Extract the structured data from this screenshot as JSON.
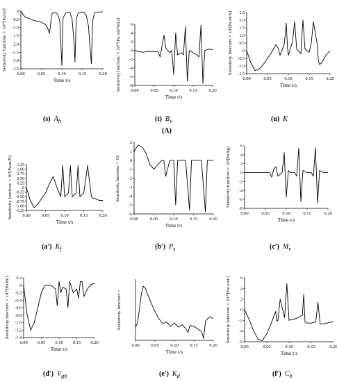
{
  "figure": {
    "group_label": "(A)",
    "panels": [
      {
        "id": "s",
        "letter": "(s)",
        "name": "A",
        "sub": "h",
        "ylabel": "Sensitivity function/ × 10¹⁰[Pa/m²]",
        "xlabel": "Time t/s",
        "yticks": [
          "0",
          "-0.5",
          "-1.0",
          "-1.5",
          "-2.0",
          "-2.5",
          "-3.0",
          "-3.5"
        ]
      },
      {
        "id": "t",
        "letter": "(t)",
        "name": "B",
        "sub": "v",
        "ylabel": "Sensitivity function/ × 10¹⁰[Pa.rad/Nm.s]",
        "xlabel": "Time t/s",
        "yticks": [
          "6",
          "4",
          "2",
          "0",
          "-2",
          "-4",
          "-6",
          "-8"
        ]
      },
      {
        "id": "u",
        "letter": "(u)",
        "name": "K",
        "sub": "",
        "ylabel": "Sensitivity function/ × 10¹[Pa.m/N]",
        "xlabel": "Time t/s",
        "yticks": [
          "2.5",
          "2.0",
          "1.5",
          "1.0",
          "0.5",
          "0",
          "-0.5",
          "-1.0",
          "-1.5"
        ]
      },
      {
        "id": "a",
        "letter": "(a′)",
        "name": "K",
        "sub": "f",
        "ylabel": "Sensitivity function/ × 10³[Pa.m/N]",
        "xlabel": "Time t/s",
        "yticks": [
          "1.25",
          "1.00",
          "0.75",
          "0.50",
          "0.25",
          "0",
          "-0.25",
          "-0.50",
          "-0.75",
          "-1.00",
          "-1.25"
        ]
      },
      {
        "id": "b",
        "letter": "(b′)",
        "name": "P",
        "sub": "s",
        "ylabel": "Sensitivity function/ × 10·",
        "xlabel": "Time t/s",
        "yticks": [
          "2",
          "1",
          "0",
          "-1",
          "-2",
          "-3",
          "-4",
          "-5",
          "-6"
        ]
      },
      {
        "id": "c",
        "letter": "(c′)",
        "name": "M",
        "sub": "v",
        "ylabel": "Sensitivity function/ × 10⁸[Pa/kg]",
        "xlabel": "Time t/s",
        "yticks": [
          "6",
          "4",
          "2",
          "0",
          "-2",
          "-4",
          "-6",
          "-8"
        ]
      },
      {
        "id": "d",
        "letter": "(d′)",
        "name": "V",
        "sub": "gb",
        "ylabel": "Sensitivity function/ × 10¹⁰[Pa/m³]",
        "xlabel": "Time t/s",
        "yticks": [
          "0.2",
          "0",
          "-0.2",
          "-0.4",
          "-0.6",
          "-0.8",
          "-1.0",
          "-1.2",
          "-1.4"
        ]
      },
      {
        "id": "e",
        "letter": "(e′)",
        "name": "K",
        "sub": "d",
        "ylabel": "Sensitivity function/ ×",
        "xlabel": "Time t/s",
        "yticks": []
      },
      {
        "id": "f",
        "letter": "(f′)",
        "name": "C",
        "sub": "b",
        "ylabel": "Sensitivity function/ × 10¹⁰[Pa².s/m³]",
        "xlabel": "Time t/s",
        "yticks": [
          "6",
          "4",
          "2",
          "0",
          "-2",
          "-4",
          "-6"
        ]
      }
    ]
  },
  "chart_data": [
    {
      "type": "line",
      "panel": "(s) Ah",
      "xlabel": "Time t/s",
      "ylabel": "Sensitivity function/ × 10¹⁰[Pa/m²]",
      "xlim": [
        0,
        0.2
      ],
      "ylim": [
        -3.5,
        0
      ],
      "x": [
        0,
        0.005,
        0.01,
        0.02,
        0.03,
        0.04,
        0.05,
        0.06,
        0.065,
        0.07,
        0.072,
        0.075,
        0.08,
        0.085,
        0.09,
        0.095,
        0.098,
        0.1,
        0.103,
        0.11,
        0.115,
        0.12,
        0.125,
        0.13,
        0.132,
        0.135,
        0.14,
        0.15,
        0.155,
        0.16,
        0.165,
        0.17,
        0.172,
        0.175,
        0.18,
        0.19,
        0.2
      ],
      "y": [
        0,
        -0.2,
        -0.35,
        -0.45,
        -0.55,
        -0.62,
        -0.68,
        -0.8,
        -1.0,
        -1.35,
        -0.9,
        -0.2,
        -0.1,
        -0.1,
        -0.2,
        -0.6,
        -2.2,
        -3.3,
        -0.4,
        -0.1,
        -0.05,
        -0.1,
        -0.5,
        -2.0,
        -3.1,
        -0.5,
        -0.1,
        -0.05,
        -0.1,
        -0.3,
        -0.9,
        -2.6,
        -3.2,
        -0.6,
        -0.1,
        -0.05,
        -0.05
      ]
    },
    {
      "type": "line",
      "panel": "(t) Bv",
      "xlabel": "Time t/s",
      "ylabel": "Sensitivity function/ × 10¹⁰[Pa.rad/Nm.s]",
      "xlim": [
        0,
        0.2
      ],
      "ylim": [
        -8,
        6
      ],
      "x": [
        0,
        0.01,
        0.02,
        0.03,
        0.04,
        0.05,
        0.06,
        0.065,
        0.07,
        0.075,
        0.08,
        0.09,
        0.095,
        0.1,
        0.105,
        0.11,
        0.12,
        0.125,
        0.13,
        0.135,
        0.14,
        0.15,
        0.16,
        0.165,
        0.17,
        0.175,
        0.18,
        0.19,
        0.2
      ],
      "y": [
        0,
        -0.2,
        -0.4,
        -0.3,
        -0.2,
        -0.2,
        -0.3,
        -1.5,
        1.0,
        3.5,
        0.5,
        -0.5,
        0,
        -5.5,
        4.0,
        -1.0,
        -0.5,
        -1.0,
        5.5,
        -7.0,
        0,
        -0.5,
        -1.0,
        -1.5,
        5.8,
        -7.5,
        0,
        0.3,
        0.2
      ]
    },
    {
      "type": "line",
      "panel": "(u) K",
      "xlabel": "Time t/s",
      "ylabel": "Sensitivity function/ × 10¹[Pa.m/N]",
      "xlim": [
        0,
        0.2
      ],
      "ylim": [
        -1.5,
        2.5
      ],
      "x": [
        0,
        0.01,
        0.02,
        0.03,
        0.04,
        0.05,
        0.06,
        0.07,
        0.075,
        0.08,
        0.09,
        0.095,
        0.098,
        0.1,
        0.11,
        0.115,
        0.12,
        0.13,
        0.132,
        0.135,
        0.14,
        0.15,
        0.155,
        0.16,
        0.17,
        0.172,
        0.175,
        0.18,
        0.19,
        0.2
      ],
      "y": [
        0,
        -0.8,
        -1.3,
        -1.2,
        -0.9,
        -0.5,
        -0.1,
        0.4,
        0.2,
        -0.3,
        0.4,
        1.8,
        0.2,
        -0.3,
        0.6,
        1.9,
        0.1,
        -0.2,
        0.8,
        2.0,
        0.1,
        -0.1,
        0.5,
        1.9,
        0.3,
        -0.7,
        -0.9,
        -0.8,
        -0.3,
        0
      ]
    },
    {
      "type": "line",
      "panel": "(a′) Kf",
      "xlabel": "Time t/s",
      "ylabel": "Sensitivity function/ × 10³[Pa.m/N]",
      "xlim": [
        0,
        0.2
      ],
      "ylim": [
        -1.25,
        1.25
      ],
      "x": [
        0,
        0.01,
        0.02,
        0.03,
        0.04,
        0.05,
        0.06,
        0.07,
        0.075,
        0.08,
        0.09,
        0.095,
        0.1,
        0.11,
        0.115,
        0.12,
        0.13,
        0.132,
        0.135,
        0.14,
        0.15,
        0.155,
        0.16,
        0.17,
        0.175,
        0.18,
        0.19,
        0.2
      ],
      "y": [
        0,
        -0.7,
        -1.1,
        -0.9,
        -0.6,
        -0.3,
        0.2,
        0.6,
        0.3,
        0.0,
        -0.5,
        1.2,
        -0.5,
        -0.3,
        1.2,
        -0.5,
        -0.3,
        0.2,
        1.2,
        -0.5,
        -0.3,
        0.4,
        1.2,
        -0.5,
        -0.6,
        -0.6,
        -0.7,
        -0.7
      ]
    },
    {
      "type": "line",
      "panel": "(b′) Ps",
      "xlabel": "Time t/s",
      "ylabel": "Sensitivity function/ × 10·",
      "xlim": [
        0,
        0.2
      ],
      "ylim": [
        -6,
        2
      ],
      "x": [
        0,
        0.01,
        0.02,
        0.03,
        0.04,
        0.05,
        0.06,
        0.07,
        0.075,
        0.08,
        0.09,
        0.1,
        0.105,
        0.11,
        0.12,
        0.13,
        0.14,
        0.145,
        0.15,
        0.16,
        0.17,
        0.18,
        0.185,
        0.19,
        0.2
      ],
      "y": [
        1,
        1.7,
        1.5,
        0.8,
        -0.5,
        -1.0,
        -0.5,
        0,
        0,
        -1.8,
        0,
        0,
        -5.0,
        0,
        0,
        0,
        -5.6,
        0,
        0,
        0,
        0,
        -5.8,
        0,
        0,
        0
      ]
    },
    {
      "type": "line",
      "panel": "(c′) Mv",
      "xlabel": "Time t/s",
      "ylabel": "Sensitivity function/ × 10⁸[Pa/kg]",
      "xlim": [
        0,
        0.2
      ],
      "ylim": [
        -8,
        6
      ],
      "x": [
        0,
        0.02,
        0.04,
        0.06,
        0.065,
        0.07,
        0.075,
        0.08,
        0.09,
        0.095,
        0.1,
        0.105,
        0.11,
        0.12,
        0.125,
        0.13,
        0.135,
        0.14,
        0.15,
        0.16,
        0.165,
        0.17,
        0.175,
        0.18,
        0.19,
        0.2
      ],
      "y": [
        0,
        0,
        0,
        0,
        -1.0,
        0.8,
        1.3,
        -0.8,
        0,
        4.5,
        -5.5,
        0.5,
        0,
        0,
        -0.8,
        5.5,
        -6.5,
        0.5,
        0,
        0,
        -0.8,
        5.6,
        -6.8,
        0.5,
        0,
        0
      ]
    },
    {
      "type": "line",
      "panel": "(d′) Vgb",
      "xlabel": "Time t/s",
      "ylabel": "Sensitivity function/ × 10¹⁰[Pa/m³]",
      "xlim": [
        0,
        0.2
      ],
      "ylim": [
        -1.4,
        0.2
      ],
      "x": [
        0,
        0.01,
        0.02,
        0.03,
        0.04,
        0.05,
        0.06,
        0.07,
        0.08,
        0.09,
        0.095,
        0.1,
        0.105,
        0.11,
        0.12,
        0.125,
        0.13,
        0.14,
        0.15,
        0.155,
        0.16,
        0.165,
        0.17,
        0.18,
        0.19,
        0.2
      ],
      "y": [
        0,
        -0.8,
        -1.2,
        -1.0,
        -0.6,
        -0.2,
        0,
        0,
        -0.02,
        -0.1,
        -0.55,
        0.1,
        -0.2,
        -0.05,
        -0.1,
        -0.6,
        0.1,
        -0.2,
        -0.1,
        -0.35,
        0.1,
        0.1,
        -0.3,
        -0.1,
        0.02,
        0.05
      ]
    },
    {
      "type": "line",
      "panel": "(e′) Kd",
      "xlabel": "Time t/s",
      "ylabel": "Sensitivity function/ ×",
      "xlim": [
        0,
        0.2
      ],
      "ylim": [
        -2.5,
        4.5
      ],
      "x": [
        0,
        0.005,
        0.01,
        0.015,
        0.02,
        0.025,
        0.03,
        0.04,
        0.05,
        0.06,
        0.07,
        0.08,
        0.09,
        0.1,
        0.11,
        0.12,
        0.13,
        0.135,
        0.14,
        0.15,
        0.16,
        0.17,
        0.175,
        0.18,
        0.19,
        0.2
      ],
      "y": [
        -1.0,
        -0.5,
        1.0,
        2.8,
        3.7,
        3.5,
        2.9,
        1.8,
        0.8,
        0.0,
        -0.6,
        -0.4,
        -0.9,
        -0.5,
        -1.0,
        -0.7,
        -1.2,
        -1.6,
        -0.8,
        -0.9,
        -1.2,
        -1.5,
        -2.3,
        -0.3,
        0.2,
        0.0
      ]
    },
    {
      "type": "line",
      "panel": "(f′) Cb",
      "xlabel": "Time t/s",
      "ylabel": "Sensitivity function/ × 10¹⁰[Pa².s/m³]",
      "xlim": [
        0,
        0.2
      ],
      "ylim": [
        -6,
        6
      ],
      "x": [
        0,
        0.01,
        0.02,
        0.03,
        0.04,
        0.05,
        0.06,
        0.07,
        0.072,
        0.075,
        0.08,
        0.09,
        0.095,
        0.1,
        0.105,
        0.11,
        0.12,
        0.13,
        0.133,
        0.136,
        0.14,
        0.15,
        0.16,
        0.165,
        0.17,
        0.18,
        0.19,
        0.2
      ],
      "y": [
        0,
        -1.8,
        -3.9,
        -5.5,
        -5.8,
        -4.5,
        -2.5,
        -0.3,
        -2.1,
        -2.0,
        2.0,
        -1.5,
        4.9,
        -2.0,
        -1.8,
        -1.8,
        -1.5,
        -1.0,
        2.9,
        -2.3,
        -2.5,
        -2.5,
        -2.3,
        1.4,
        -2.7,
        -2.6,
        -2.4,
        -2.2
      ]
    }
  ]
}
